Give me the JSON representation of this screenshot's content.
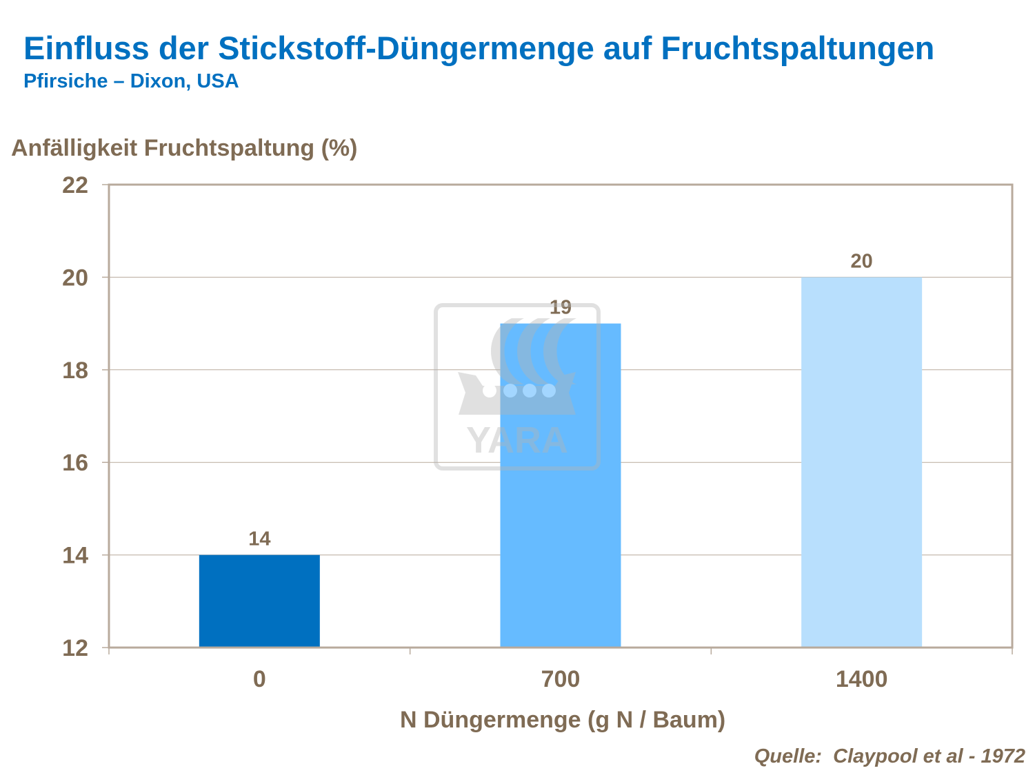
{
  "chart_data": {
    "type": "bar",
    "title": "Einfluss der Stickstoff-Düngermenge auf Fruchtspaltungen",
    "subtitle": "Pfirsiche – Dixon, USA",
    "ylabel": "Anfälligkeit Fruchtspaltung (%)",
    "xlabel": "N Düngermenge (g N / Baum)",
    "categories": [
      "0",
      "700",
      "1400"
    ],
    "values": [
      14,
      19,
      20
    ],
    "data_labels": [
      "14",
      "19",
      "20"
    ],
    "bar_colors": [
      "#0070c0",
      "#66bbff",
      "#b8dffd"
    ],
    "ylim": [
      12,
      22
    ],
    "yticks": [
      "12",
      "14",
      "16",
      "18",
      "20",
      "22"
    ],
    "grid": true,
    "legend": "none",
    "source": "Quelle:  Claypool et al - 1972",
    "watermark": "YARA"
  },
  "colors": {
    "title": "#0070c0",
    "text": "#7f6b54",
    "axis": "#b8aa9c"
  }
}
